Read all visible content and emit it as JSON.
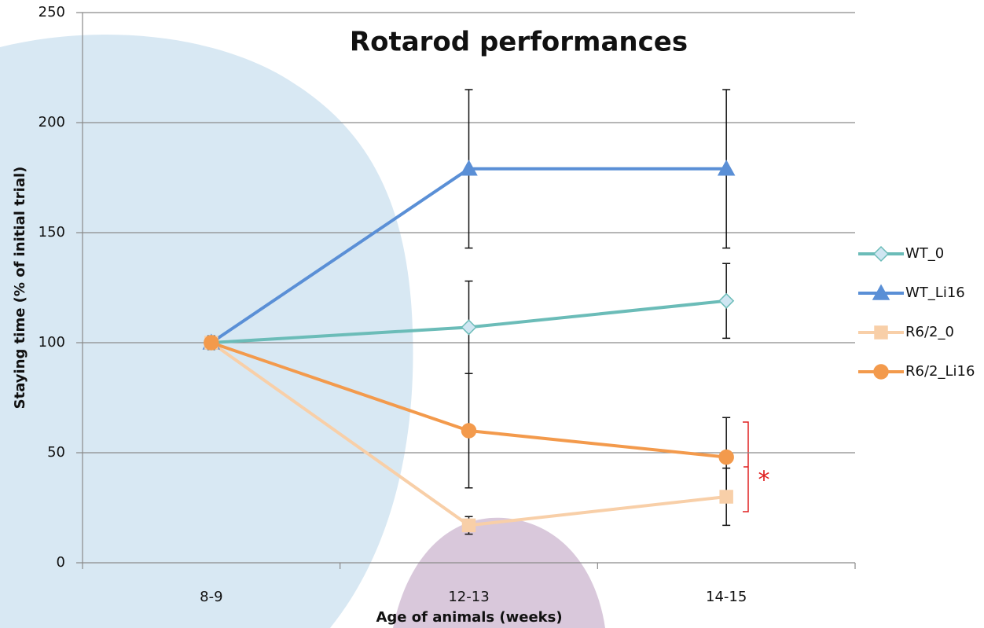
{
  "chart_data": {
    "type": "line",
    "title": "Rotarod performances",
    "x_label": "Age of animals (weeks)",
    "y_label": "Staying time (% of initial trial)",
    "categories": [
      "8-9",
      "12-13",
      "14-15"
    ],
    "series": [
      {
        "name": "WT_0",
        "color": "#6bbcb8",
        "marker": "diamond",
        "values": [
          100,
          107,
          119
        ],
        "errors": [
          3,
          21,
          17
        ]
      },
      {
        "name": "WT_Li16",
        "color": "#5a8fd6",
        "marker": "triangle",
        "values": [
          100,
          179,
          179
        ],
        "errors": [
          3,
          36,
          36
        ]
      },
      {
        "name": "R6/2_0",
        "color": "#f8cfa8",
        "marker": "square",
        "values": [
          100,
          17,
          30
        ],
        "errors": [
          3,
          4,
          13
        ]
      },
      {
        "name": "R6/2_Li16",
        "color": "#f39a4c",
        "marker": "circle",
        "values": [
          100,
          60,
          48
        ],
        "errors": [
          3,
          26,
          18
        ]
      }
    ],
    "annotation": "*",
    "ylim": [
      0,
      250
    ],
    "yticks": [
      0,
      50,
      100,
      150,
      200,
      250
    ],
    "grid": true,
    "legend": "right"
  }
}
